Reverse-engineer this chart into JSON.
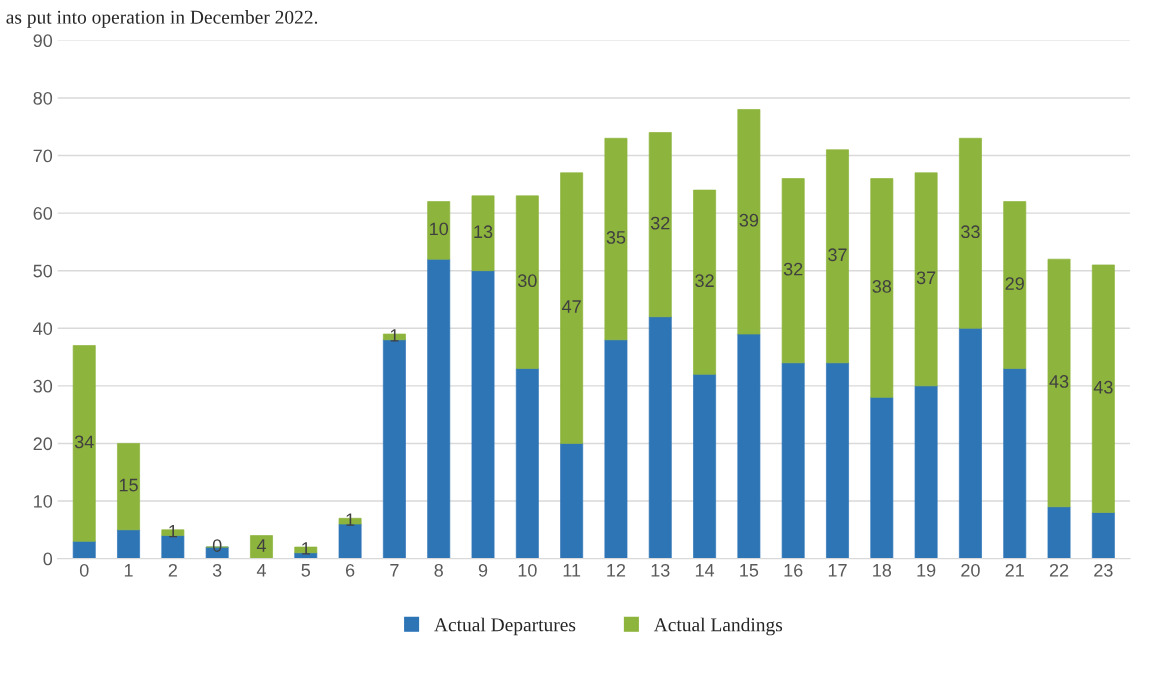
{
  "chart_data": {
    "type": "bar",
    "stacked": true,
    "annotations": [
      "as put into operation in December 2022."
    ],
    "categories": [
      "0",
      "1",
      "2",
      "3",
      "4",
      "5",
      "6",
      "7",
      "8",
      "9",
      "10",
      "11",
      "12",
      "13",
      "14",
      "15",
      "16",
      "17",
      "18",
      "19",
      "20",
      "21",
      "22",
      "23"
    ],
    "series": [
      {
        "name": "Actual Departures",
        "color": "#2e75b6",
        "values": [
          3,
          5,
          4,
          2,
          0,
          1,
          6,
          38,
          52,
          50,
          33,
          20,
          38,
          42,
          32,
          39,
          34,
          34,
          28,
          30,
          40,
          33,
          9,
          8
        ]
      },
      {
        "name": "Actual Landings",
        "color": "#8db43c",
        "values": [
          34,
          15,
          1,
          0,
          4,
          1,
          1,
          1,
          10,
          13,
          30,
          47,
          35,
          32,
          32,
          39,
          32,
          37,
          38,
          37,
          33,
          29,
          43,
          43
        ],
        "value_labels": [
          "34",
          "15",
          "1",
          "0",
          "4",
          "1",
          "1",
          "1",
          "10",
          "13",
          "30",
          "47",
          "35",
          "32",
          "32",
          "39",
          "32",
          "37",
          "38",
          "37",
          "33",
          "29",
          "43",
          "43"
        ]
      }
    ],
    "ylim": [
      0,
      90
    ],
    "yticks": [
      0,
      10,
      20,
      30,
      40,
      50,
      60,
      70,
      80,
      90
    ],
    "grid": "y",
    "legend": "bottom"
  }
}
